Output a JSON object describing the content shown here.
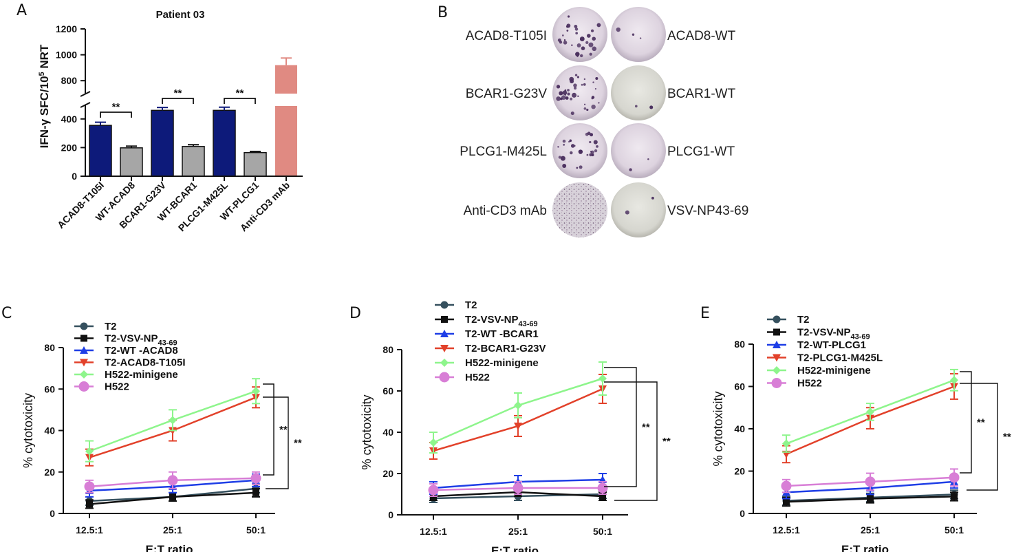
{
  "panels": {
    "a": {
      "label": "A"
    },
    "b": {
      "label": "B"
    },
    "c": {
      "label": "C"
    },
    "d": {
      "label": "D"
    },
    "e": {
      "label": "E"
    }
  },
  "wells": {
    "rows": [
      {
        "left": "ACAD8-T105I",
        "right": "ACAD8-WT"
      },
      {
        "left": "BCAR1-G23V",
        "right": "BCAR1-WT"
      },
      {
        "left": "PLCG1-M425L",
        "right": "PLCG1-WT"
      },
      {
        "left": "Anti-CD3 mAb",
        "right": "VSV-NP43-69"
      }
    ]
  },
  "chart_data": [
    {
      "id": "A",
      "type": "bar",
      "title": "Patient 03",
      "ylabel": "IFN-γ SFC/10^5 NRT",
      "ylabel_main": "IFN-γ SFC/10",
      "ylabel_sup": "5",
      "ylabel_tail": " NRT",
      "y_broken_axis": true,
      "lower_range": [
        0,
        500
      ],
      "upper_range": [
        700,
        1200
      ],
      "lower_ticks": [
        "0",
        "200",
        "400"
      ],
      "upper_ticks": [
        "800",
        "1000",
        "1200"
      ],
      "categories": [
        "ACAD8-T105I",
        "WT-ACAD8",
        "BCAR1-G23V",
        "WT-BCAR1",
        "PLCG1-M425L",
        "WT-PLCG1",
        "Anti-CD3 mAb"
      ],
      "values": [
        355,
        198,
        460,
        208,
        460,
        165,
        920
      ],
      "errors": [
        22,
        12,
        20,
        12,
        22,
        8,
        55
      ],
      "colors": [
        "#0d1a7a",
        "#a6a6a6",
        "#0d1a7a",
        "#a6a6a6",
        "#0d1a7a",
        "#a6a6a6",
        "#e08a82"
      ],
      "significance": [
        "**",
        "**",
        "**"
      ]
    },
    {
      "id": "C",
      "type": "line",
      "xlabel": "E:T ratio",
      "ylabel": "% cytotoxicity",
      "categories": [
        "12.5:1",
        "25:1",
        "50:1"
      ],
      "ylim": [
        0,
        80
      ],
      "yticks": [
        "0",
        "20",
        "40",
        "60",
        "80"
      ],
      "series": [
        {
          "name": "T2",
          "sub": "",
          "values": [
            6,
            8,
            12
          ],
          "errors": [
            2,
            2,
            2
          ],
          "color": "#35505e",
          "marker": "circle"
        },
        {
          "name": "T2-VSV-NP",
          "sub": "43-69",
          "values": [
            4.5,
            8,
            10
          ],
          "errors": [
            2,
            2,
            2
          ],
          "color": "#111111",
          "marker": "square"
        },
        {
          "name": "T2-WT -ACAD8",
          "sub": "",
          "values": [
            11,
            13,
            16
          ],
          "errors": [
            3,
            3,
            3
          ],
          "color": "#1e3ee6",
          "marker": "triangle"
        },
        {
          "name": "T2-ACAD8-T105I",
          "sub": "",
          "values": [
            27,
            40,
            56
          ],
          "errors": [
            4,
            5,
            5
          ],
          "color": "#e2412a",
          "marker": "triangle-down"
        },
        {
          "name": "H522-minigene",
          "sub": "",
          "values": [
            30,
            45,
            59
          ],
          "errors": [
            5,
            5,
            6
          ],
          "color": "#8ef58c",
          "marker": "diamond"
        },
        {
          "name": "H522",
          "sub": "",
          "values": [
            13,
            16,
            17
          ],
          "errors": [
            3,
            4,
            3
          ],
          "color": "#d87ed6",
          "marker": "big-circle"
        }
      ],
      "significance": [
        "**",
        "**"
      ]
    },
    {
      "id": "D",
      "type": "line",
      "xlabel": "E:T ratio",
      "ylabel": "% cytotoxicity",
      "categories": [
        "12.5:1",
        "25:1",
        "50:1"
      ],
      "ylim": [
        0,
        80
      ],
      "yticks": [
        "0",
        "20",
        "40",
        "60",
        "80"
      ],
      "series": [
        {
          "name": "T2",
          "sub": "",
          "values": [
            8,
            9,
            10
          ],
          "errors": [
            2,
            2,
            2
          ],
          "color": "#35505e",
          "marker": "circle"
        },
        {
          "name": "T2-VSV-NP",
          "sub": "43-69",
          "values": [
            9,
            11,
            9
          ],
          "errors": [
            2,
            2,
            2
          ],
          "color": "#111111",
          "marker": "square"
        },
        {
          "name": "T2-WT -BCAR1",
          "sub": "",
          "values": [
            13,
            16,
            17
          ],
          "errors": [
            3,
            3,
            3
          ],
          "color": "#1e3ee6",
          "marker": "triangle"
        },
        {
          "name": "T2-BCAR1-G23V",
          "sub": "",
          "values": [
            31,
            43,
            61
          ],
          "errors": [
            4,
            5,
            7
          ],
          "color": "#e2412a",
          "marker": "triangle-down"
        },
        {
          "name": "H522-minigene",
          "sub": "",
          "values": [
            35,
            53,
            66
          ],
          "errors": [
            5,
            6,
            8
          ],
          "color": "#8ef58c",
          "marker": "diamond"
        },
        {
          "name": "H522",
          "sub": "",
          "values": [
            12,
            13,
            13
          ],
          "errors": [
            3,
            3,
            3
          ],
          "color": "#d87ed6",
          "marker": "big-circle"
        }
      ],
      "significance": [
        "**",
        "**"
      ]
    },
    {
      "id": "E",
      "type": "line",
      "xlabel": "E:T ratio",
      "ylabel": "% cytotoxicity",
      "categories": [
        "12.5:1",
        "25:1",
        "50:1"
      ],
      "ylim": [
        0,
        80
      ],
      "yticks": [
        "0",
        "20",
        "40",
        "60",
        "80"
      ],
      "series": [
        {
          "name": "T2",
          "sub": "",
          "values": [
            6,
            7.5,
            9
          ],
          "errors": [
            2,
            2,
            2
          ],
          "color": "#35505e",
          "marker": "circle"
        },
        {
          "name": "T2-VSV-NP",
          "sub": "43-69",
          "values": [
            5.5,
            7,
            8
          ],
          "errors": [
            2,
            2,
            2
          ],
          "color": "#111111",
          "marker": "square"
        },
        {
          "name": "T2-WT-PLCG1",
          "sub": "",
          "values": [
            10,
            12,
            15
          ],
          "errors": [
            3,
            3,
            3
          ],
          "color": "#1e3ee6",
          "marker": "triangle"
        },
        {
          "name": "T2-PLCG1-M425L",
          "sub": "",
          "values": [
            28,
            45,
            60
          ],
          "errors": [
            4,
            5,
            6
          ],
          "color": "#e2412a",
          "marker": "triangle-down"
        },
        {
          "name": "H522-minigene",
          "sub": "",
          "values": [
            33,
            48,
            63
          ],
          "errors": [
            4,
            4,
            5
          ],
          "color": "#8ef58c",
          "marker": "diamond"
        },
        {
          "name": "H522",
          "sub": "",
          "values": [
            13,
            15,
            17
          ],
          "errors": [
            3,
            4,
            4
          ],
          "color": "#d87ed6",
          "marker": "big-circle"
        }
      ],
      "significance": [
        "**",
        "**"
      ]
    }
  ]
}
